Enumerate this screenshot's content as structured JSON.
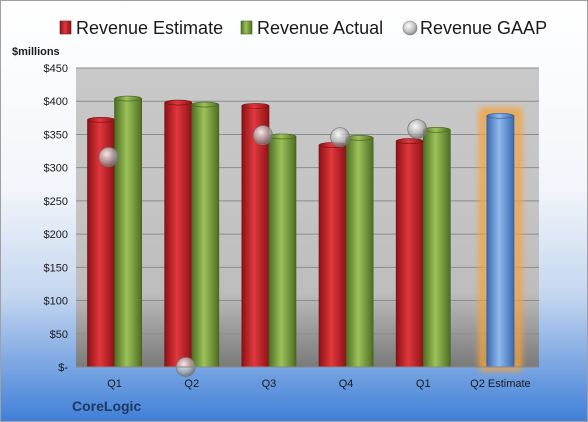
{
  "chart_data": {
    "type": "bar",
    "company": "CoreLogic",
    "ylabel": "$millions",
    "ylim": [
      0,
      450
    ],
    "yticks": [
      0,
      50,
      100,
      150,
      200,
      250,
      300,
      350,
      400,
      450
    ],
    "ytick_labels": [
      "$-",
      "$50",
      "$100",
      "$150",
      "$200",
      "$250",
      "$300",
      "$350",
      "$400",
      "$450"
    ],
    "categories": [
      "Q1",
      "Q2",
      "Q3",
      "Q4",
      "Q1",
      "Q2 Estimate"
    ],
    "legend_position": "top",
    "grid": true,
    "series": [
      {
        "name": "Revenue Estimate",
        "type": "bar",
        "color": "#c0262c",
        "values": [
          372,
          398,
          393,
          334,
          340,
          null
        ]
      },
      {
        "name": "Revenue Actual",
        "type": "bar",
        "color": "#7aa33a",
        "values": [
          404,
          395,
          347,
          345,
          357,
          null
        ]
      },
      {
        "name": "Revenue GAAP",
        "type": "scatter",
        "color": "#b8b8b8",
        "values": [
          316,
          0,
          349,
          346,
          358,
          null
        ]
      },
      {
        "name": "Q2 Estimate",
        "type": "bar",
        "color": "#5b8fd6",
        "highlight_color": "#f5a23a",
        "values": [
          null,
          null,
          null,
          null,
          null,
          378
        ]
      }
    ]
  }
}
